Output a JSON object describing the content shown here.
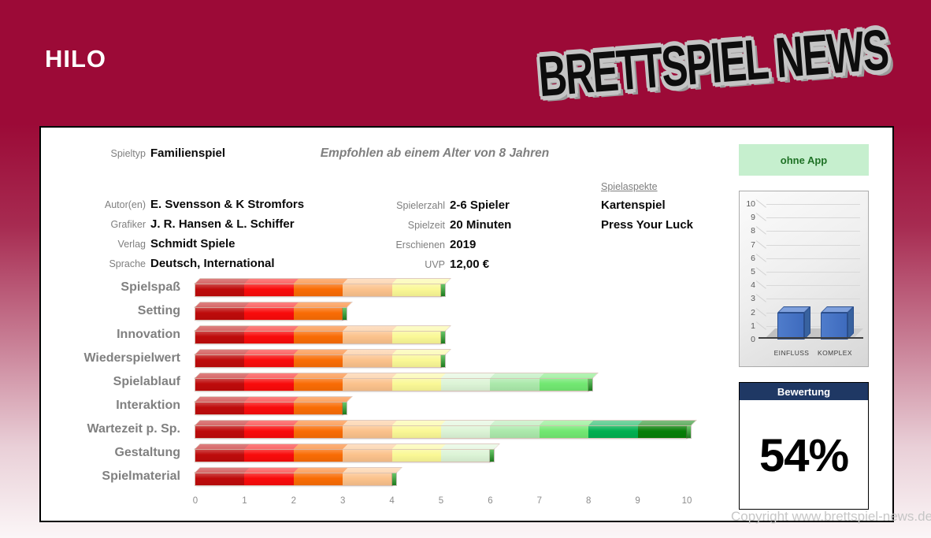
{
  "header": {
    "title": "HILO",
    "logo": "BRETTSPIEL NEWS"
  },
  "info": {
    "spieltyp": {
      "label": "Spieltyp",
      "value": "Familienspiel"
    },
    "empfohlen": "Empfohlen ab einem Alter von 8 Jahren",
    "app_badge": "ohne App",
    "left": [
      {
        "label": "Autor(en)",
        "value": "E. Svensson & K Stromfors"
      },
      {
        "label": "Grafiker",
        "value": "J. R. Hansen & L. Schiffer"
      },
      {
        "label": "Verlag",
        "value": "Schmidt Spiele"
      },
      {
        "label": "Sprache",
        "value": "Deutsch, International"
      }
    ],
    "right": [
      {
        "label": "Spielerzahl",
        "value": "2-6 Spieler"
      },
      {
        "label": "Spielzeit",
        "value": "20 Minuten"
      },
      {
        "label": "Erschienen",
        "value": "2019"
      },
      {
        "label": "UVP",
        "value": "12,00 €"
      }
    ],
    "aspects": {
      "label": "Spielaspekte",
      "items": [
        "Kartenspiel",
        "Press Your Luck"
      ]
    }
  },
  "chart_data": [
    {
      "type": "bar",
      "orientation": "horizontal",
      "categories": [
        "Spielspaß",
        "Setting",
        "Innovation",
        "Wiederspielwert",
        "Spielablauf",
        "Interaktion",
        "Wartezeit p. Sp.",
        "Gestaltung",
        "Spielmaterial"
      ],
      "values": [
        5,
        3,
        5,
        5,
        8,
        3,
        10,
        6,
        4
      ],
      "xlim": [
        0,
        10
      ],
      "ticks": [
        0,
        1,
        2,
        3,
        4,
        5,
        6,
        7,
        8,
        9,
        10
      ],
      "grid": false,
      "segment_colors": [
        "#BE0B0B",
        "#F90B0B",
        "#F96C05",
        "#FBC28C",
        "#FAF896",
        "#DCF4D6",
        "#ABE9AB",
        "#72E872",
        "#00B050",
        "#077F07"
      ]
    },
    {
      "type": "bar",
      "orientation": "vertical",
      "categories": [
        "EINFLUSS",
        "KOMPLEX"
      ],
      "values": [
        2,
        2
      ],
      "ylim": [
        0,
        10
      ],
      "yticks": [
        0,
        1,
        2,
        3,
        4,
        5,
        6,
        7,
        8,
        9,
        10
      ],
      "grid": true,
      "column_color": "#4472C4"
    }
  ],
  "rating": {
    "header": "Bewertung",
    "value": "54%"
  },
  "copyright": "Copyright www.brettspiel-news.de",
  "colors": {
    "background": "#9C0A37",
    "rating_header_bg": "#1F3864",
    "app_badge_bg": "#C6EFCE",
    "app_badge_text": "#1E7125",
    "column_blue": "#4472C4"
  }
}
